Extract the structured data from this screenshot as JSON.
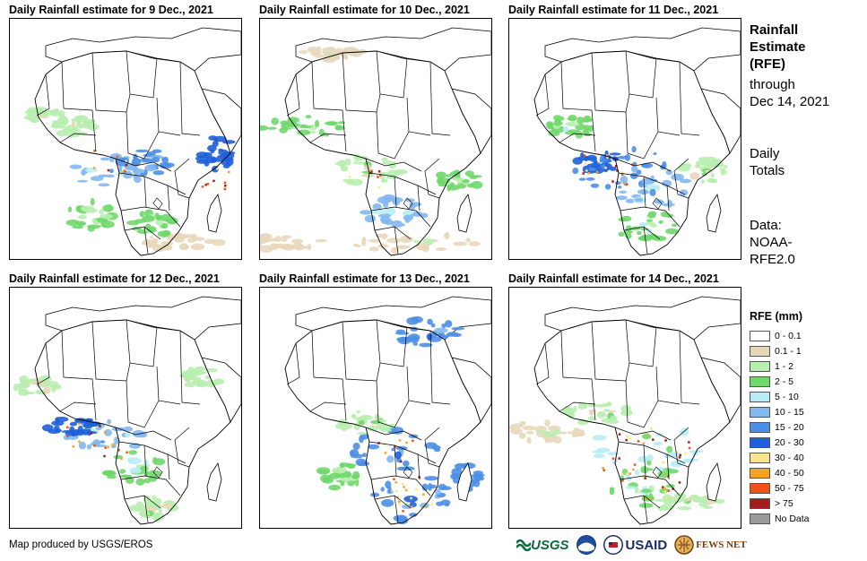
{
  "panels": [
    {
      "title": "Daily Rainfall estimate for 9 Dec., 2021"
    },
    {
      "title": "Daily Rainfall estimate for 10 Dec., 2021"
    },
    {
      "title": "Daily Rainfall estimate for 11 Dec., 2021"
    },
    {
      "title": "Daily Rainfall estimate for 12 Dec., 2021"
    },
    {
      "title": "Daily Rainfall estimate for 13 Dec., 2021"
    },
    {
      "title": "Daily Rainfall estimate for 14 Dec., 2021"
    }
  ],
  "sidebar": {
    "title_lines": [
      "Rainfall",
      "Estimate",
      "(RFE)"
    ],
    "through_lines": [
      "through",
      "Dec 14, 2021"
    ],
    "daily_lines": [
      "Daily",
      "Totals"
    ],
    "data_lines": [
      "Data:",
      "NOAA-",
      "RFE2.0"
    ]
  },
  "legend": {
    "title": "RFE (mm)",
    "items": [
      {
        "label": "0 - 0.1",
        "color": "#ffffff"
      },
      {
        "label": "0.1 - 1",
        "color": "#e8d8bb"
      },
      {
        "label": "1 - 2",
        "color": "#b8eeb0"
      },
      {
        "label": "2 - 5",
        "color": "#6fd86a"
      },
      {
        "label": "5 - 10",
        "color": "#b8ecf4"
      },
      {
        "label": "10 - 15",
        "color": "#83b8ee"
      },
      {
        "label": "15 - 20",
        "color": "#4c8fe6"
      },
      {
        "label": "20 - 30",
        "color": "#1f5fd8"
      },
      {
        "label": "30 - 40",
        "color": "#fbe58a"
      },
      {
        "label": "40 - 50",
        "color": "#f4a323"
      },
      {
        "label": "50 - 75",
        "color": "#f2501a"
      },
      {
        "label": "> 75",
        "color": "#a61c1c"
      },
      {
        "label": "No Data",
        "color": "#9a9a9a"
      }
    ]
  },
  "footer": {
    "credit": "Map produced by USGS/EROS",
    "logos": {
      "usgs": "USGS",
      "usaid": "USAID",
      "fews": "FEWS NET"
    }
  }
}
